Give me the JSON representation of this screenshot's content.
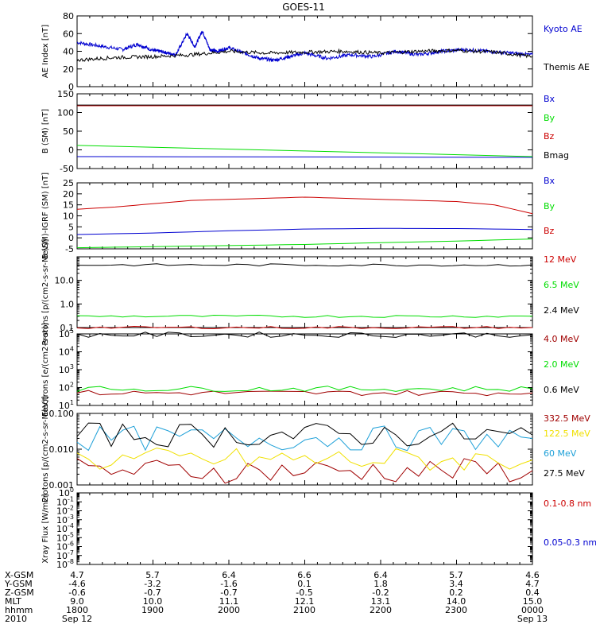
{
  "title": "GOES-11",
  "colors": {
    "blue": "#0000d0",
    "green": "#00dd00",
    "red": "#cc0000",
    "darkred": "#a00000",
    "black": "#000000",
    "yellow": "#f0e000",
    "cyan": "#1ea0d8"
  },
  "time_axis": {
    "ticks": [
      "1800",
      "1900",
      "2000",
      "2100",
      "2200",
      "2300",
      "0000"
    ],
    "start_date": "Sep 12",
    "end_date": "Sep 13"
  },
  "ephemeris": {
    "rows": [
      {
        "label": "X-GSM",
        "values": [
          "4.7",
          "5.7",
          "6.4",
          "6.6",
          "6.4",
          "5.7",
          "4.6"
        ]
      },
      {
        "label": "Y-GSM",
        "values": [
          "-4.6",
          "-3.2",
          "-1.6",
          "0.1",
          "1.8",
          "3.4",
          "4.7"
        ]
      },
      {
        "label": "Z-GSM",
        "values": [
          "-0.6",
          "-0.7",
          "-0.7",
          "-0.5",
          "-0.2",
          "0.2",
          "0.4"
        ]
      },
      {
        "label": "MLT",
        "values": [
          "9.0",
          "10.0",
          "11.1",
          "12.1",
          "13.1",
          "14.0",
          "15.0"
        ]
      },
      {
        "label": "hhmm",
        "values": [
          "1800",
          "1900",
          "2000",
          "2100",
          "2200",
          "2300",
          "0000"
        ]
      },
      {
        "label": "2010",
        "values": [
          "Sep 12",
          "",
          "",
          "",
          "",
          "",
          "Sep 13"
        ]
      }
    ]
  },
  "chart_data": [
    {
      "type": "line",
      "ylabel": "AE Index [nT]",
      "ylim": [
        0,
        80
      ],
      "yticks": [
        "0",
        "20",
        "40",
        "60",
        "80"
      ],
      "series": [
        {
          "name": "Kyoto AE",
          "color": "#0000d0",
          "x": [
            18.0,
            18.3,
            18.6,
            18.8,
            19.0,
            19.15,
            19.3,
            19.45,
            19.55,
            19.65,
            19.75,
            19.85,
            20.0,
            20.2,
            20.4,
            20.6,
            20.8,
            21.0,
            21.3,
            21.6,
            21.9,
            22.2,
            22.5,
            22.8,
            23.1,
            23.4,
            23.7,
            24.0
          ],
          "values": [
            50,
            46,
            42,
            48,
            41,
            39,
            36,
            60,
            45,
            63,
            42,
            40,
            44,
            38,
            32,
            30,
            34,
            38,
            32,
            36,
            34,
            40,
            36,
            40,
            42,
            40,
            38,
            36
          ]
        },
        {
          "name": "Themis AE",
          "color": "#000000",
          "x": [
            18.0,
            18.5,
            19.0,
            19.5,
            20.0,
            20.5,
            21.0,
            21.5,
            22.0,
            22.5,
            23.0,
            23.5,
            24.0
          ],
          "values": [
            30,
            33,
            34,
            36,
            40,
            38,
            39,
            40,
            38,
            40,
            41,
            39,
            34
          ]
        }
      ]
    },
    {
      "type": "line",
      "ylabel": "B (SM) [nT]",
      "ylim": [
        -50,
        150
      ],
      "yticks": [
        "-50",
        "0",
        "50",
        "100",
        "150"
      ],
      "series": [
        {
          "name": "Bx",
          "color": "#0000d0",
          "x": [
            18,
            24
          ],
          "values": [
            -18,
            -20
          ]
        },
        {
          "name": "By",
          "color": "#00dd00",
          "x": [
            18,
            24
          ],
          "values": [
            12,
            -18
          ]
        },
        {
          "name": "Bz",
          "color": "#cc0000",
          "x": [
            18,
            24
          ],
          "values": [
            118,
            118
          ]
        },
        {
          "name": "Bmag",
          "color": "#000000",
          "x": [
            18,
            24
          ],
          "values": [
            120,
            120
          ]
        }
      ]
    },
    {
      "type": "line",
      "ylabel": "B (SM)-IGRF (SM) [nT]",
      "ylim": [
        -5,
        25
      ],
      "yticks": [
        "-5",
        "0",
        "5",
        "10",
        "15",
        "20",
        "25"
      ],
      "series": [
        {
          "name": "Bx",
          "color": "#0000d0",
          "x": [
            18,
            19,
            20,
            21,
            22,
            23,
            24
          ],
          "values": [
            1.5,
            2.2,
            3.2,
            4.0,
            4.3,
            4.2,
            3.8
          ]
        },
        {
          "name": "By",
          "color": "#00dd00",
          "x": [
            18,
            19,
            20,
            21,
            22,
            23,
            24
          ],
          "values": [
            -4.5,
            -4.0,
            -3.5,
            -3.0,
            -2.2,
            -1.5,
            -0.5
          ]
        },
        {
          "name": "Bz",
          "color": "#cc0000",
          "x": [
            18,
            18.5,
            19,
            19.5,
            20,
            20.5,
            21,
            21.5,
            22,
            22.5,
            23,
            23.5,
            24
          ],
          "values": [
            13,
            14,
            15.5,
            17,
            17.5,
            18,
            18.5,
            18,
            17.5,
            17,
            16.5,
            15,
            11
          ]
        }
      ]
    },
    {
      "type": "line",
      "ylabel": "Protons [p/(cm2-s-sr-MeV)]",
      "yscale": "log",
      "ylim": [
        0.1,
        100
      ],
      "yticks": [
        "0.1",
        "1.0",
        "10.0"
      ],
      "series": [
        {
          "name": "12 MeV",
          "color": "#cc0000",
          "x": [
            18,
            24
          ],
          "values": [
            0.1,
            0.1
          ]
        },
        {
          "name": "6.5 MeV",
          "color": "#00dd00",
          "x": [
            18,
            24
          ],
          "values": [
            0.3,
            0.3
          ]
        },
        {
          "name": "2.4 MeV",
          "color": "#000000",
          "x": [
            18,
            24
          ],
          "values": [
            45,
            45
          ]
        }
      ]
    },
    {
      "type": "line",
      "ylabel": "Electrons [e/(cm2-s-sr)]",
      "yscale": "log",
      "ylim": [
        10,
        100000
      ],
      "yticks": [
        "10^1",
        "10^2",
        "10^3",
        "10^4",
        "10^5"
      ],
      "series": [
        {
          "name": "4.0 MeV",
          "color": "#a00000",
          "x": [
            18,
            24
          ],
          "values": [
            50,
            50
          ]
        },
        {
          "name": "2.0 MeV",
          "color": "#00dd00",
          "x": [
            18,
            24
          ],
          "values": [
            85,
            85
          ]
        },
        {
          "name": "0.6 MeV",
          "color": "#000000",
          "x": [
            18,
            24
          ],
          "values": [
            90000,
            90000
          ]
        }
      ]
    },
    {
      "type": "line",
      "ylabel": "Protons [p/(cm2-s-sr-MeV)]",
      "yscale": "log",
      "ylim": [
        0.001,
        0.1
      ],
      "yticks": [
        "0.001",
        "0.010",
        "0.100"
      ],
      "series": [
        {
          "name": "332.5 MeV",
          "color": "#a00000",
          "x": [
            18,
            24
          ],
          "values": [
            0.0025,
            0.0025
          ]
        },
        {
          "name": "122.5 MeV",
          "color": "#f0e000",
          "x": [
            18,
            24
          ],
          "values": [
            0.005,
            0.005
          ]
        },
        {
          "name": "60 MeV",
          "color": "#1ea0d8",
          "x": [
            18,
            24
          ],
          "values": [
            0.02,
            0.02
          ]
        },
        {
          "name": "27.5 MeV",
          "color": "#000000",
          "x": [
            18,
            24
          ],
          "values": [
            0.025,
            0.025
          ]
        }
      ]
    },
    {
      "type": "line",
      "ylabel": "Xray Flux [W/m2]",
      "yscale": "log",
      "ylim": [
        1e-08,
        1
      ],
      "yticks": [
        "10^0",
        "10^-1",
        "10^-2",
        "10^-3",
        "10^-4",
        "10^-5",
        "10^-6",
        "10^-7",
        "10^-8"
      ],
      "series": [
        {
          "name": "0.1-0.8 nm",
          "color": "#cc0000",
          "x": [],
          "values": []
        },
        {
          "name": "0.05-0.3 nm",
          "color": "#0000d0",
          "x": [],
          "values": []
        }
      ]
    }
  ]
}
